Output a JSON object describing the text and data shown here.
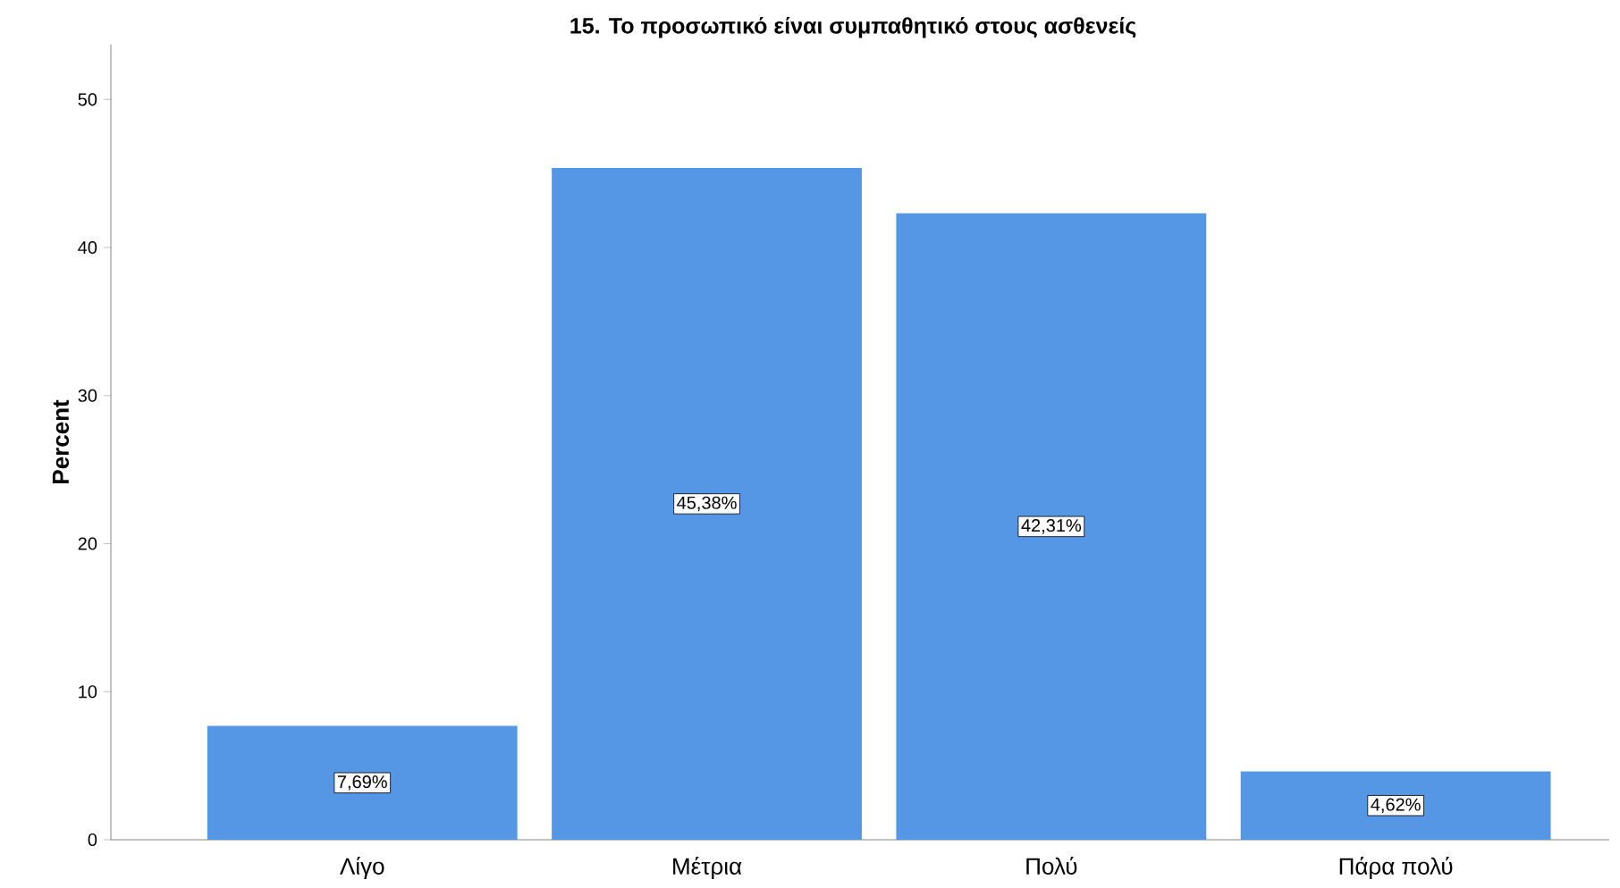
{
  "chart_data": {
    "type": "bar",
    "title": "15. Το προσωπικό είναι συμπαθητικό στους ασθενείς",
    "ylabel": "Percent",
    "categories": [
      "Λίγο",
      "Μέτρια",
      "Πολύ",
      "Πάρα πολύ"
    ],
    "values": [
      7.69,
      45.38,
      42.31,
      4.62
    ],
    "value_labels": [
      "7,69%",
      "45,38%",
      "42,31%",
      "4,62%"
    ],
    "color": "#5596e5",
    "ylim": [
      0,
      53.7
    ],
    "yticks": [
      0,
      10,
      20,
      30,
      40,
      50
    ],
    "grid": false
  }
}
